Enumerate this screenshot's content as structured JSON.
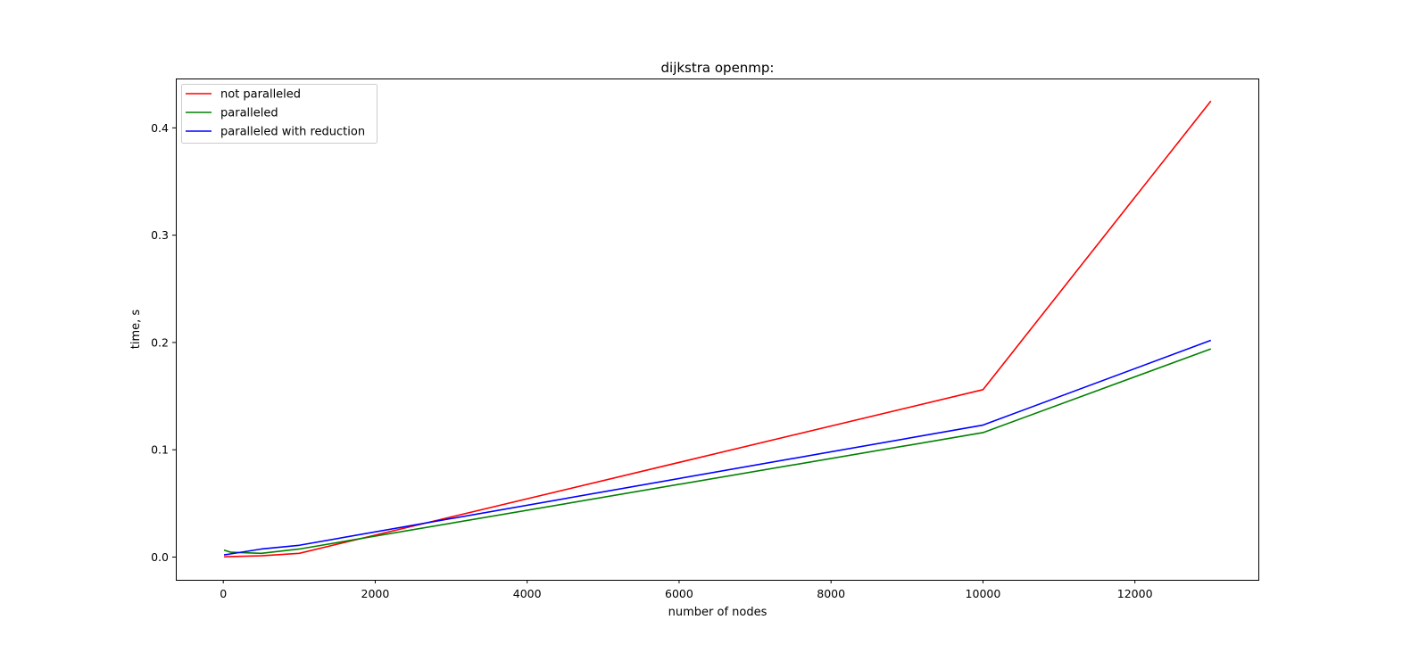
{
  "chart_data": {
    "type": "line",
    "title": "dijkstra openmp:",
    "xlabel": "number of nodes",
    "ylabel": "time, s",
    "xlim": [
      -625,
      13625
    ],
    "ylim": [
      -0.0212,
      0.446
    ],
    "xticks": [
      0,
      2000,
      4000,
      6000,
      8000,
      10000,
      12000
    ],
    "xtick_labels": [
      "0",
      "2000",
      "4000",
      "6000",
      "8000",
      "10000",
      "12000"
    ],
    "yticks": [
      0.0,
      0.1,
      0.2,
      0.3,
      0.4
    ],
    "ytick_labels": [
      "0.0",
      "0.1",
      "0.2",
      "0.3",
      "0.4"
    ],
    "grid": false,
    "legend_position": "top-left",
    "x": [
      10,
      100,
      500,
      1000,
      10000,
      13000
    ],
    "series": [
      {
        "name": "not paralleled",
        "color": "#ff0000",
        "values": [
          0.0002,
          0.0005,
          0.0012,
          0.0035,
          0.156,
          0.425
        ]
      },
      {
        "name": "paralleled",
        "color": "#008000",
        "values": [
          0.0065,
          0.0045,
          0.0035,
          0.0075,
          0.116,
          0.194
        ]
      },
      {
        "name": "paralleled with reduction",
        "color": "#0000ff",
        "values": [
          0.002,
          0.003,
          0.0075,
          0.011,
          0.123,
          0.202
        ]
      }
    ]
  }
}
